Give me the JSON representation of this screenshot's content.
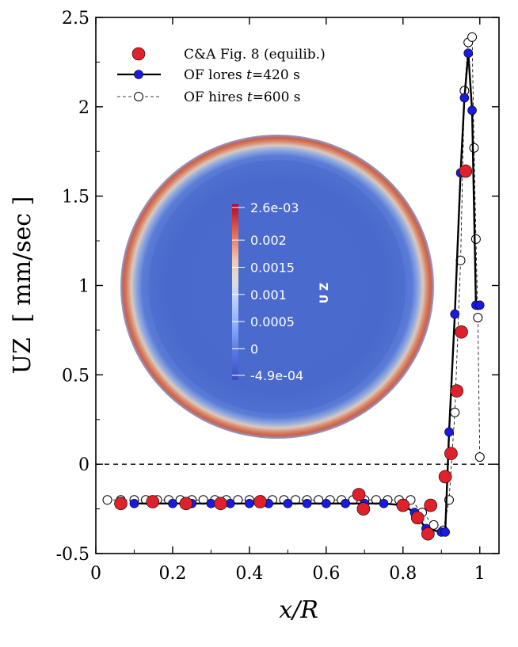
{
  "chart_data": {
    "type": "scatter",
    "xlabel": "x/R",
    "ylabel": "UZ  [ mm/sec ]",
    "xlim": [
      0,
      1.05
    ],
    "ylim": [
      -0.5,
      2.5
    ],
    "xticks": [
      0,
      0.2,
      0.4,
      0.6,
      0.8,
      1
    ],
    "xtick_labels": [
      "0",
      "0.2",
      "0.4",
      "0.6",
      "0.8",
      "1"
    ],
    "yticks": [
      -0.5,
      0,
      0.5,
      1,
      1.5,
      2,
      2.5
    ],
    "ytick_labels": [
      "-0.5",
      "0",
      "0.5",
      "1",
      "1.5",
      "2",
      "2.5"
    ],
    "zero_line": 0,
    "legend": [
      {
        "label": "C&A Fig. 8 (equilib.)",
        "style": "red-filled-circle"
      },
      {
        "label": "OF lores t=420 s",
        "label_pre": "OF lores ",
        "label_italic": "t",
        "label_post": "=420 s",
        "style": "blue-circle-solid-line"
      },
      {
        "label": "OF hires t=600 s",
        "label_pre": "OF hires ",
        "label_italic": "t",
        "label_post": "=600 s",
        "style": "open-circle-dashed-line"
      }
    ],
    "series": [
      {
        "name": "C&A Fig. 8 (equilib.)",
        "x": [
          0.065,
          0.148,
          0.235,
          0.325,
          0.428,
          0.685,
          0.697,
          0.8,
          0.838,
          0.865,
          0.872,
          0.91,
          0.925,
          0.94,
          0.952,
          0.963
        ],
        "y": [
          -0.22,
          -0.21,
          -0.22,
          -0.22,
          -0.21,
          -0.17,
          -0.25,
          -0.23,
          -0.3,
          -0.39,
          -0.23,
          -0.07,
          0.06,
          0.41,
          0.74,
          1.64
        ]
      },
      {
        "name": "OF lores t=420 s",
        "x": [
          0.1,
          0.15,
          0.2,
          0.25,
          0.3,
          0.35,
          0.4,
          0.45,
          0.5,
          0.55,
          0.6,
          0.65,
          0.7,
          0.75,
          0.8,
          0.83,
          0.86,
          0.9,
          0.91,
          0.92,
          0.935,
          0.95,
          0.96,
          0.97,
          0.98,
          0.99,
          1.0
        ],
        "y": [
          -0.22,
          -0.22,
          -0.22,
          -0.22,
          -0.22,
          -0.22,
          -0.22,
          -0.22,
          -0.22,
          -0.22,
          -0.22,
          -0.22,
          -0.22,
          -0.22,
          -0.23,
          -0.27,
          -0.36,
          -0.38,
          -0.38,
          0.18,
          0.84,
          1.63,
          2.05,
          2.3,
          1.98,
          0.89,
          0.89
        ]
      },
      {
        "name": "OF hires t=600 s",
        "x": [
          0.03,
          0.065,
          0.1,
          0.13,
          0.16,
          0.19,
          0.22,
          0.25,
          0.28,
          0.31,
          0.34,
          0.37,
          0.4,
          0.43,
          0.46,
          0.49,
          0.52,
          0.55,
          0.58,
          0.61,
          0.64,
          0.67,
          0.7,
          0.73,
          0.76,
          0.79,
          0.82,
          0.85,
          0.88,
          0.905,
          0.92,
          0.935,
          0.95,
          0.96,
          0.97,
          0.98,
          0.985,
          0.99,
          0.995,
          1.0
        ],
        "y": [
          -0.2,
          -0.2,
          -0.2,
          -0.2,
          -0.2,
          -0.2,
          -0.2,
          -0.2,
          -0.2,
          -0.2,
          -0.2,
          -0.2,
          -0.2,
          -0.2,
          -0.2,
          -0.2,
          -0.2,
          -0.2,
          -0.2,
          -0.2,
          -0.2,
          -0.2,
          -0.2,
          -0.2,
          -0.2,
          -0.2,
          -0.2,
          -0.27,
          -0.34,
          -0.37,
          -0.2,
          0.29,
          1.14,
          2.09,
          2.36,
          2.39,
          1.77,
          1.26,
          0.82,
          0.04
        ]
      }
    ],
    "inset": {
      "variable": "U Z",
      "colorbar_labels": [
        "2.6e-03",
        "0.002",
        "0.0015",
        "0.001",
        "0.0005",
        "0",
        "-4.9e-04"
      ],
      "colorbar_values": [
        0.0026,
        0.002,
        0.0015,
        0.001,
        0.0005,
        0,
        -0.00049
      ],
      "colorbar_range": [
        -0.00049,
        0.0026
      ],
      "colors": {
        "low": "#3b4cc0",
        "mid": "#dddddd",
        "high": "#b40426"
      }
    },
    "colors": {
      "ca": "#e0202a",
      "lores": "#1a1ae6",
      "hires_edge": "#000000",
      "axis": "#000000"
    }
  }
}
